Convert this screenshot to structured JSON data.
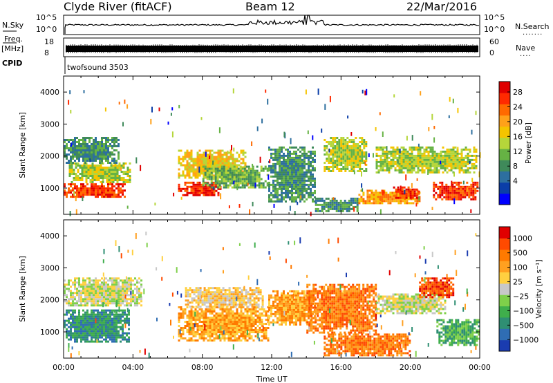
{
  "header": {
    "station": "Clyde River (fitACF)",
    "beam": "Beam 12",
    "date": "22/Mar/2016"
  },
  "strip": {
    "nsky_label": "N.Sky",
    "nsky_ticks": [
      "10^5",
      "10^0"
    ],
    "nsearch_label": "N.Search",
    "nsearch_ticks": [
      "10^5",
      "10^0"
    ],
    "freq_label": "Freq.",
    "freq_unit": "[MHz]",
    "freq_ticks": [
      "18",
      "8"
    ],
    "nave_label": "Nave",
    "nave_ticks": [
      "60",
      "0"
    ],
    "cpid_label": "CPID",
    "cpid_value": "twofsound 3503",
    "colors": {
      "trace": "#000000"
    }
  },
  "chart_data": [
    {
      "type": "heatmap",
      "name": "power",
      "ylabel": "Slant Range [km]",
      "xlabel": "",
      "xlim_hours": [
        0,
        24
      ],
      "ylim_km": [
        180,
        4500
      ],
      "y_ticks": [
        "1000",
        "2000",
        "3000",
        "4000"
      ],
      "colorbar": {
        "label": "Power [dB]",
        "ticks": [
          "4",
          "8",
          "12",
          "16",
          "20",
          "24",
          "28"
        ],
        "colors": [
          "#0000ff",
          "#0b3ea8",
          "#2d6f9f",
          "#3f8a5a",
          "#66b244",
          "#b5d63a",
          "#f5c400",
          "#ffa11a",
          "#ff6a00",
          "#ff2a00",
          "#e00000"
        ]
      },
      "patches": [
        {
          "t0": 0.0,
          "t1": 3.5,
          "r0": 700,
          "r1": 1150,
          "level": 9
        },
        {
          "t0": 0.3,
          "t1": 3.8,
          "r0": 1200,
          "r1": 1800,
          "level": 5
        },
        {
          "t0": 0.0,
          "t1": 3.2,
          "r0": 1800,
          "r1": 2600,
          "level": 3
        },
        {
          "t0": 6.6,
          "t1": 9.0,
          "r0": 750,
          "r1": 1200,
          "level": 9
        },
        {
          "t0": 6.6,
          "t1": 10.5,
          "r0": 1300,
          "r1": 2200,
          "level": 6
        },
        {
          "t0": 8.0,
          "t1": 11.8,
          "r0": 1000,
          "r1": 1700,
          "level": 4
        },
        {
          "t0": 11.8,
          "t1": 14.5,
          "r0": 600,
          "r1": 2300,
          "level": 3
        },
        {
          "t0": 14.5,
          "t1": 17.0,
          "r0": 250,
          "r1": 700,
          "level": 3
        },
        {
          "t0": 15.0,
          "t1": 17.5,
          "r0": 1500,
          "r1": 2600,
          "level": 5
        },
        {
          "t0": 17.0,
          "t1": 20.5,
          "r0": 500,
          "r1": 950,
          "level": 7
        },
        {
          "t0": 19.0,
          "t1": 20.5,
          "r0": 700,
          "r1": 1050,
          "level": 9
        },
        {
          "t0": 18.0,
          "t1": 23.8,
          "r0": 1500,
          "r1": 2300,
          "level": 5
        },
        {
          "t0": 21.3,
          "t1": 23.9,
          "r0": 650,
          "r1": 1200,
          "level": 9
        }
      ]
    },
    {
      "type": "heatmap",
      "name": "velocity",
      "ylabel": "Slant Range [km]",
      "xlabel": "Time UT",
      "xlim_hours": [
        0,
        24
      ],
      "ylim_km": [
        180,
        4500
      ],
      "y_ticks": [
        "1000",
        "2000",
        "3000",
        "4000"
      ],
      "x_ticks": [
        "00:00",
        "04:00",
        "08:00",
        "12:00",
        "16:00",
        "20:00",
        "00:00"
      ],
      "colorbar": {
        "label": "Velocity [m s⁻¹]",
        "ticks": [
          "1000",
          "500",
          "100",
          "25",
          "−25",
          "−100",
          "−500",
          "−1000"
        ],
        "colors": [
          "#1a3cb0",
          "#2f6db3",
          "#2f8f73",
          "#3fae4c",
          "#7fd04a",
          "#c8c8c8",
          "#ffd040",
          "#ffa020",
          "#ff7a00",
          "#ff4a00",
          "#e00000"
        ]
      },
      "patches": [
        {
          "t0": 0.0,
          "t1": 4.5,
          "r0": 1800,
          "r1": 2700,
          "level": 5
        },
        {
          "t0": 0.0,
          "t1": 3.8,
          "r0": 700,
          "r1": 1700,
          "level": 2
        },
        {
          "t0": 6.6,
          "t1": 11.8,
          "r0": 700,
          "r1": 1800,
          "level": 7
        },
        {
          "t0": 7.0,
          "t1": 11.5,
          "r0": 1800,
          "r1": 2400,
          "level": 6
        },
        {
          "t0": 11.8,
          "t1": 14.5,
          "r0": 1200,
          "r1": 2300,
          "level": 7
        },
        {
          "t0": 14.0,
          "t1": 18.0,
          "r0": 1000,
          "r1": 2500,
          "level": 8
        },
        {
          "t0": 15.0,
          "t1": 20.0,
          "r0": 300,
          "r1": 950,
          "level": 8
        },
        {
          "t0": 18.0,
          "t1": 22.0,
          "r0": 1600,
          "r1": 2200,
          "level": 5
        },
        {
          "t0": 20.5,
          "t1": 22.5,
          "r0": 2100,
          "r1": 2700,
          "level": 9
        },
        {
          "t0": 21.5,
          "t1": 23.9,
          "r0": 600,
          "r1": 1400,
          "level": 3
        }
      ]
    }
  ]
}
